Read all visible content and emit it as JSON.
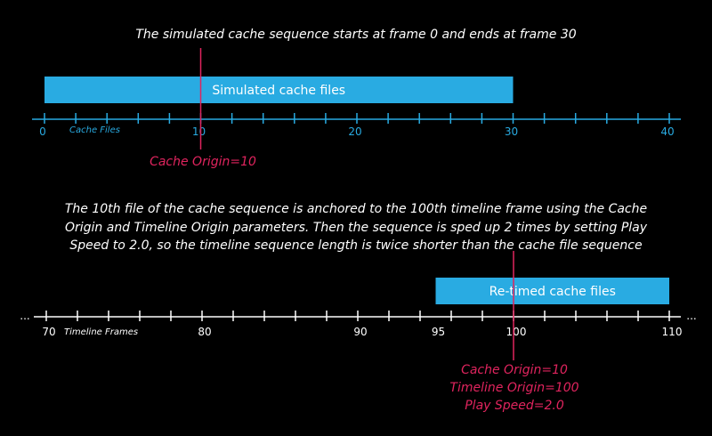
{
  "captions": {
    "top": "The simulated cache sequence starts at frame 0 and ends at frame 30",
    "middle": "The 10th file of the cache sequence is anchored to the 100th timeline frame using the Cache Origin and Timeline Origin parameters. Then the sequence is sped up 2 times by setting Play Speed to 2.0, so the timeline sequence length is twice shorter than the cache file sequence"
  },
  "colors": {
    "background": "#000000",
    "bar": "#29abe2",
    "axis_top": "#29abe2",
    "axis_bottom": "#ffffff",
    "marker": "#e0245e",
    "text": "#ffffff"
  },
  "chart_data": [
    {
      "type": "bar",
      "axis_name": "Cache Files",
      "range": [
        0,
        40
      ],
      "ticks": [
        0,
        10,
        20,
        30,
        40
      ],
      "bar": {
        "label": "Simulated cache files",
        "start": 0,
        "end": 30
      },
      "marker": {
        "value": 10,
        "label": "Cache Origin=10"
      }
    },
    {
      "type": "bar",
      "axis_name": "Timeline Frames",
      "range": [
        70,
        110
      ],
      "ticks": [
        70,
        80,
        90,
        95,
        100,
        110
      ],
      "bar": {
        "label": "Re-timed cache files",
        "start": 95,
        "end": 110
      },
      "marker": {
        "value": 100,
        "labels": [
          "Cache Origin=10",
          "Timeline Origin=100",
          "Play Speed=2.0"
        ]
      },
      "ellipsis": "..."
    }
  ]
}
